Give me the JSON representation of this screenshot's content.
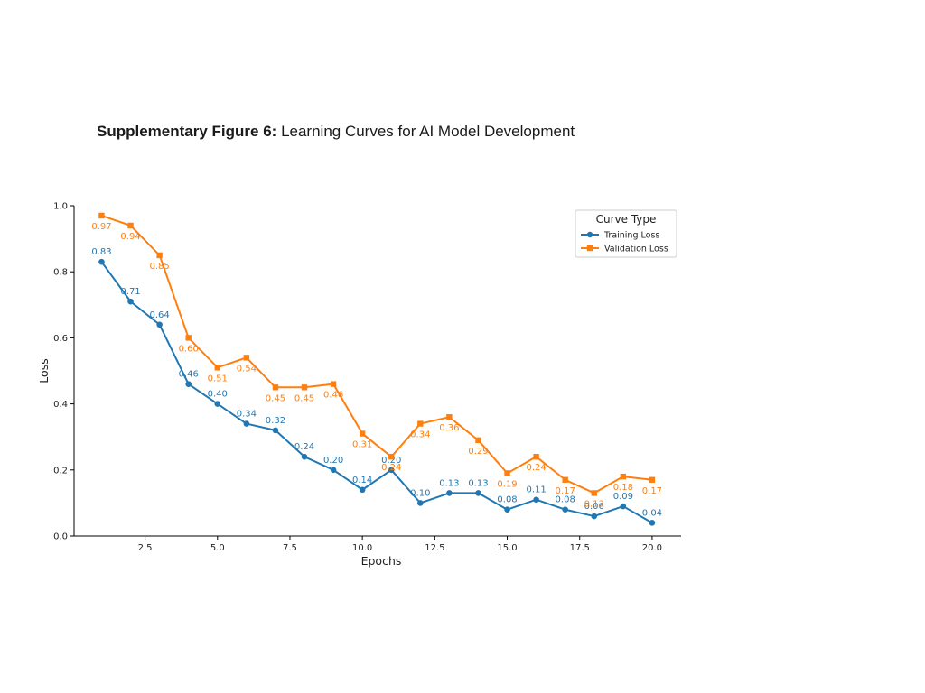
{
  "caption": {
    "label": "Supplementary Figure 6:",
    "text": "Learning Curves for AI Model Development"
  },
  "chart_data": {
    "type": "line",
    "title": "",
    "xlabel": "Epochs",
    "ylabel": "Loss",
    "xlim": [
      0.05,
      21.0
    ],
    "ylim": [
      0.0,
      1.0
    ],
    "x_ticks": [
      2.5,
      5.0,
      7.5,
      10.0,
      12.5,
      15.0,
      17.5,
      20.0
    ],
    "x_tick_labels": [
      "2.5",
      "5.0",
      "7.5",
      "10.0",
      "12.5",
      "15.0",
      "17.5",
      "20.0"
    ],
    "y_ticks": [
      0.0,
      0.2,
      0.4,
      0.6,
      0.8,
      1.0
    ],
    "y_tick_labels": [
      "0.0",
      "0.2",
      "0.4",
      "0.6",
      "0.8",
      "1.0"
    ],
    "grid": false,
    "legend_title": "Curve Type",
    "legend_position": "top-right",
    "x": [
      1,
      2,
      3,
      4,
      5,
      6,
      7,
      8,
      9,
      10,
      11,
      12,
      13,
      14,
      15,
      16,
      17,
      18,
      19,
      20
    ],
    "series": [
      {
        "name": "Training Loss",
        "color": "#1f77b4",
        "marker": "circle",
        "values": [
          0.83,
          0.71,
          0.64,
          0.46,
          0.4,
          0.34,
          0.32,
          0.24,
          0.2,
          0.14,
          0.2,
          0.1,
          0.13,
          0.13,
          0.08,
          0.11,
          0.08,
          0.06,
          0.09,
          0.04
        ],
        "labels": [
          "0.83",
          "0.71",
          "0.64",
          "0.46",
          "0.40",
          "0.34",
          "0.32",
          "0.24",
          "0.20",
          "0.14",
          "0.20",
          "0.10",
          "0.13",
          "0.13",
          "0.08",
          "0.11",
          "0.08",
          "0.06",
          "0.09",
          "0.04"
        ]
      },
      {
        "name": "Validation Loss",
        "color": "#ff7f0e",
        "marker": "square",
        "values": [
          0.97,
          0.94,
          0.85,
          0.6,
          0.51,
          0.54,
          0.45,
          0.45,
          0.46,
          0.31,
          0.24,
          0.34,
          0.36,
          0.29,
          0.19,
          0.24,
          0.17,
          0.13,
          0.18,
          0.17
        ],
        "labels": [
          "0.97",
          "0.94",
          "0.85",
          "0.60",
          "0.51",
          "0.54",
          "0.45",
          "0.45",
          "0.46",
          "0.31",
          "0.24",
          "0.34",
          "0.36",
          "0.29",
          "0.19",
          "0.24",
          "0.17",
          "0.13",
          "0.18",
          "0.17"
        ]
      }
    ]
  }
}
